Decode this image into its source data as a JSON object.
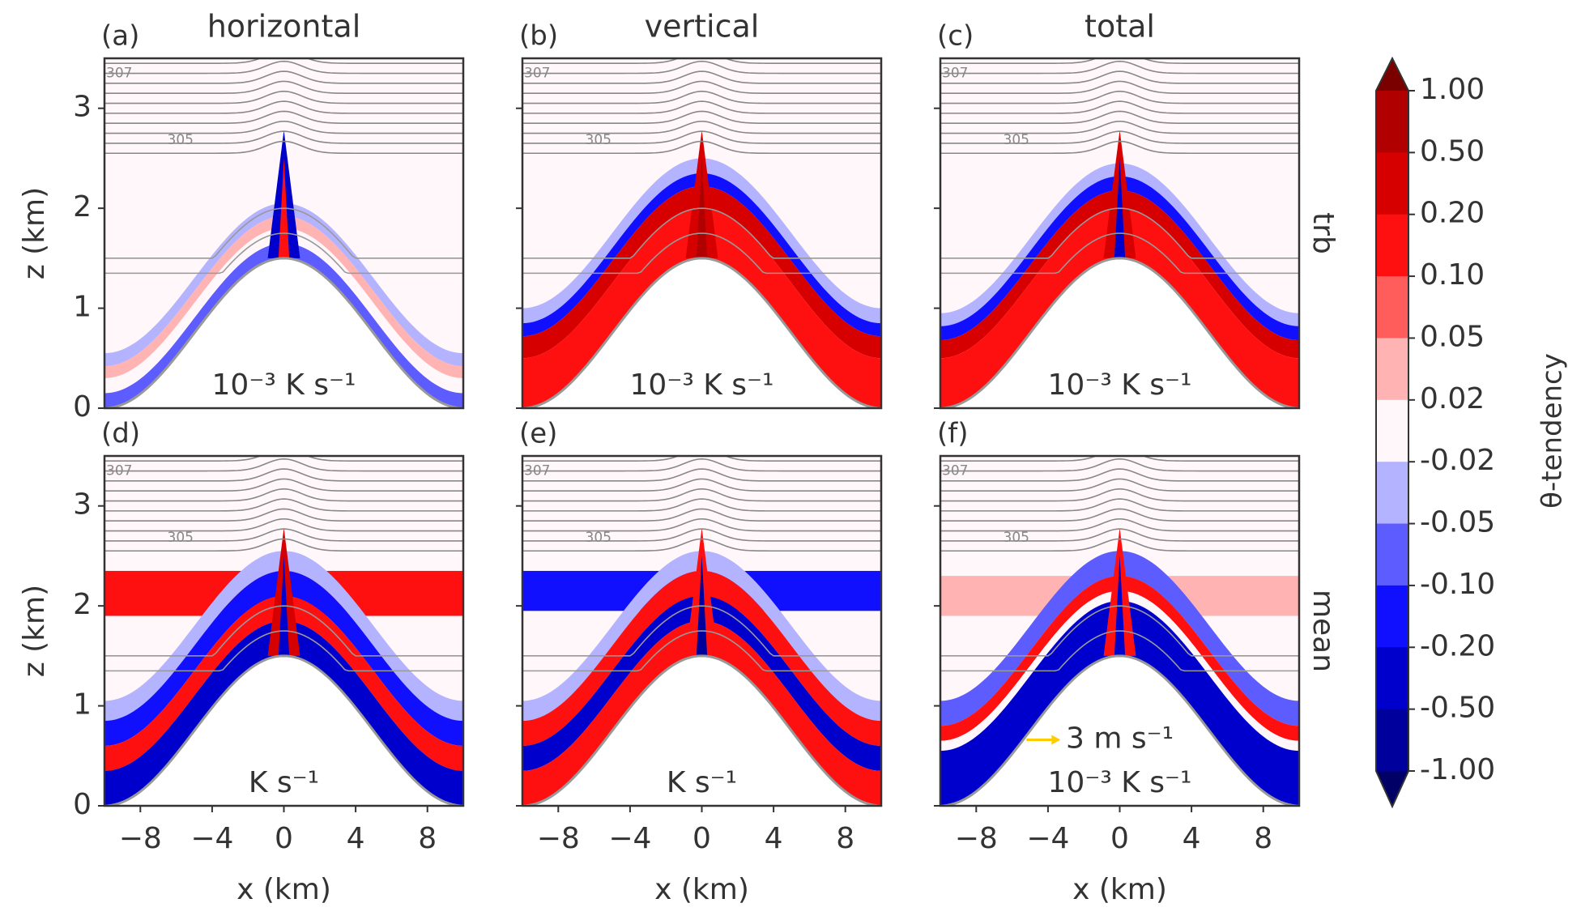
{
  "chart_data": [
    {
      "type": "contour",
      "panel_label": "(a)",
      "title": "horizontal",
      "units_label": "10⁻³ K s⁻¹",
      "contour_labels": [
        "307",
        "305"
      ],
      "y_label": "z (km)",
      "xlim": [
        -10,
        10
      ],
      "ylim": [
        0,
        3.5
      ],
      "yticks": [
        0,
        1,
        2,
        3
      ]
    },
    {
      "type": "contour",
      "panel_label": "(b)",
      "title": "vertical",
      "units_label": "10⁻³ K s⁻¹",
      "contour_labels": [
        "307",
        "305"
      ],
      "xlim": [
        -10,
        10
      ],
      "ylim": [
        0,
        3.5
      ],
      "yticks": [
        0,
        1,
        2,
        3
      ]
    },
    {
      "type": "contour",
      "panel_label": "(c)",
      "title": "total",
      "row_label": "trb",
      "units_label": "10⁻³ K s⁻¹",
      "contour_labels": [
        "307",
        "305"
      ],
      "xlim": [
        -10,
        10
      ],
      "ylim": [
        0,
        3.5
      ],
      "yticks": [
        0,
        1,
        2,
        3
      ]
    },
    {
      "type": "contour",
      "panel_label": "(d)",
      "units_label": "K s⁻¹",
      "contour_labels": [
        "307",
        "305"
      ],
      "y_label": "z (km)",
      "x_label": "x (km)",
      "xlim": [
        -10,
        10
      ],
      "ylim": [
        0,
        3.5
      ],
      "xticks": [
        {
          "value": -8,
          "label": "−8"
        },
        {
          "value": -4,
          "label": "−4"
        },
        0,
        4,
        8
      ],
      "yticks": [
        0,
        1,
        2,
        3
      ]
    },
    {
      "type": "contour",
      "panel_label": "(e)",
      "units_label": "K s⁻¹",
      "contour_labels": [
        "307",
        "305"
      ],
      "x_label": "x (km)",
      "xlim": [
        -10,
        10
      ],
      "ylim": [
        0,
        3.5
      ],
      "xticks": [
        {
          "value": -8,
          "label": "−8"
        },
        {
          "value": -4,
          "label": "−4"
        },
        0,
        4,
        8
      ],
      "yticks": [
        0,
        1,
        2,
        3
      ]
    },
    {
      "type": "contour",
      "panel_label": "(f)",
      "row_label": "mean",
      "units_label": "10⁻³ K s⁻¹",
      "vector_key": "3 m s⁻¹",
      "contour_labels": [
        "307",
        "305"
      ],
      "x_label": "x (km)",
      "xlim": [
        -10,
        10
      ],
      "ylim": [
        0,
        3.5
      ],
      "xticks": [
        {
          "value": -8,
          "label": "−8"
        },
        {
          "value": -4,
          "label": "−4"
        },
        0,
        4,
        8
      ],
      "yticks": [
        0,
        1,
        2,
        3
      ]
    },
    {
      "type": "colorbar",
      "label": "θ-tendency",
      "extend": "both",
      "ticks": [
        {
          "value": 1,
          "label": "1.00"
        },
        {
          "value": 0.5,
          "label": "0.50"
        },
        {
          "value": 0.2,
          "label": "0.20"
        },
        {
          "value": 0.1,
          "label": "0.10"
        },
        0.05,
        0.02,
        -0.02,
        -0.05,
        {
          "value": -0.1,
          "label": "-0.10"
        },
        {
          "value": -0.2,
          "label": "-0.20"
        },
        {
          "value": -0.5,
          "label": "-0.50"
        },
        {
          "value": -1,
          "label": "-1.00"
        }
      ],
      "colors": [
        "#7a0000",
        "#b00000",
        "#d60000",
        "#ff1010",
        "#ff5c5c",
        "#ffb3b3",
        "#fff7f9",
        "#b3b3ff",
        "#5c5cff",
        "#1010ff",
        "#0000cc",
        "#00009c",
        "#000066"
      ]
    }
  ]
}
